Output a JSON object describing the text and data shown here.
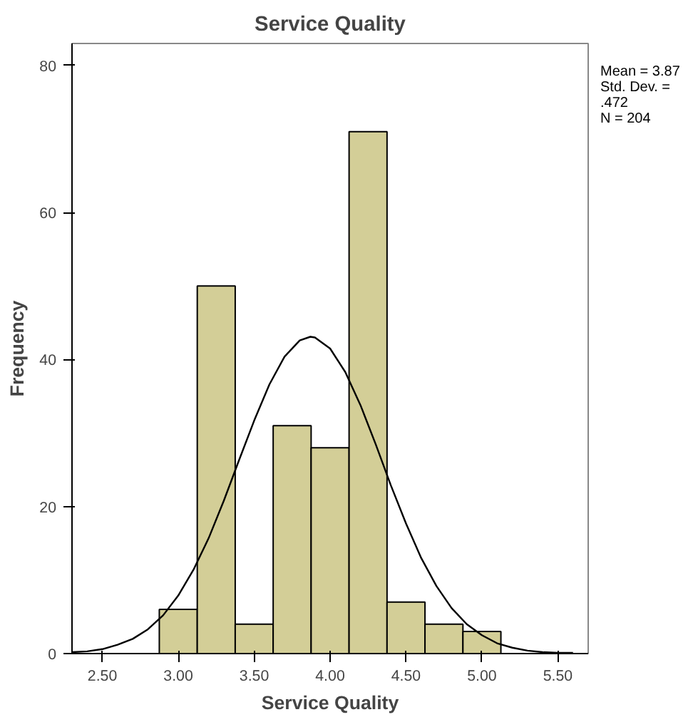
{
  "chart_data": {
    "type": "histogram",
    "title": "Service Quality",
    "xlabel": "Service Quality",
    "ylabel": "Frequency",
    "bins": [
      2.875,
      3.125,
      3.375,
      3.625,
      3.875,
      4.125,
      4.375,
      4.625,
      4.875,
      5.125
    ],
    "values": [
      6,
      50,
      4,
      31,
      28,
      71,
      7,
      4,
      3
    ],
    "color": "#d3ce97",
    "series": [
      {
        "type": "line",
        "color": "#000000",
        "x": [
          2.3,
          2.4,
          2.5,
          2.6,
          2.7,
          2.8,
          2.9,
          3.0,
          3.1,
          3.2,
          3.3,
          3.4,
          3.5,
          3.6,
          3.7,
          3.8,
          3.87,
          3.9,
          4.0,
          4.1,
          4.2,
          4.3,
          4.4,
          4.5,
          4.6,
          4.7,
          4.8,
          4.9,
          5.0,
          5.1,
          5.2,
          5.3,
          5.4,
          5.5,
          5.6
        ],
        "values": [
          0.2,
          0.3,
          0.6,
          1.2,
          2.0,
          3.3,
          5.2,
          7.9,
          11.4,
          15.7,
          20.8,
          26.3,
          31.7,
          36.6,
          40.4,
          42.6,
          43.1,
          43.0,
          41.5,
          38.3,
          33.8,
          28.5,
          22.9,
          17.7,
          13.0,
          9.2,
          6.2,
          4.0,
          2.5,
          1.4,
          0.8,
          0.4,
          0.2,
          0.1,
          0.1
        ]
      }
    ],
    "xlim": [
      2.3,
      5.7
    ],
    "ylim": [
      0,
      83
    ],
    "xticks": [
      {
        "value": 2.5,
        "label": "2.50"
      },
      {
        "value": 3.0,
        "label": "3.00"
      },
      {
        "value": 3.5,
        "label": "3.50"
      },
      {
        "value": 4.0,
        "label": "4.00"
      },
      {
        "value": 4.5,
        "label": "4.50"
      },
      {
        "value": 5.0,
        "label": "5.00"
      },
      {
        "value": 5.5,
        "label": "5.50"
      }
    ],
    "yticks": [
      0,
      20,
      40,
      60,
      80
    ],
    "annotations": [
      "Mean = 3.87",
      "Std. Dev. = .472",
      "N = 204"
    ]
  }
}
